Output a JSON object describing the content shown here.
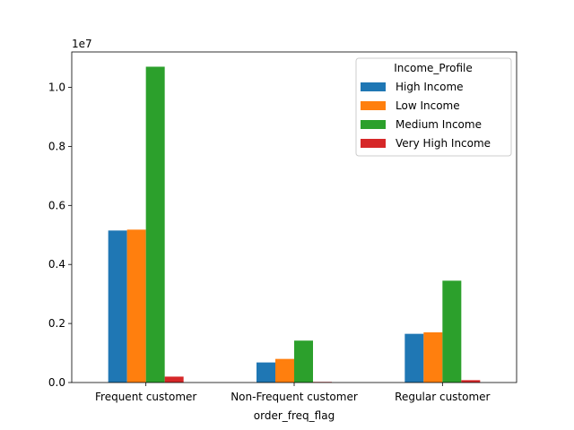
{
  "chart_data": {
    "type": "bar",
    "title": "",
    "xlabel": "order_freq_flag",
    "ylabel": "",
    "scale_label": "1e7",
    "categories": [
      "Frequent customer",
      "Non-Frequent customer",
      "Regular customer"
    ],
    "yticks": [
      "0.0",
      "0.2",
      "0.4",
      "0.6",
      "0.8",
      "1.0"
    ],
    "ytick_values": [
      0,
      2000000,
      4000000,
      6000000,
      8000000,
      10000000
    ],
    "ylim": [
      0,
      11200000
    ],
    "grid": false,
    "legend": {
      "title": "Income_Profile",
      "placement": "top-right"
    },
    "series": [
      {
        "name": "High Income",
        "color": "#1f77b4",
        "values": [
          5150000,
          680000,
          1650000
        ]
      },
      {
        "name": "Low Income",
        "color": "#ff7f0e",
        "values": [
          5180000,
          800000,
          1700000
        ]
      },
      {
        "name": "Medium Income",
        "color": "#2ca02c",
        "values": [
          10700000,
          1420000,
          3450000
        ]
      },
      {
        "name": "Very High Income",
        "color": "#d62728",
        "values": [
          200000,
          20000,
          80000
        ]
      }
    ]
  }
}
